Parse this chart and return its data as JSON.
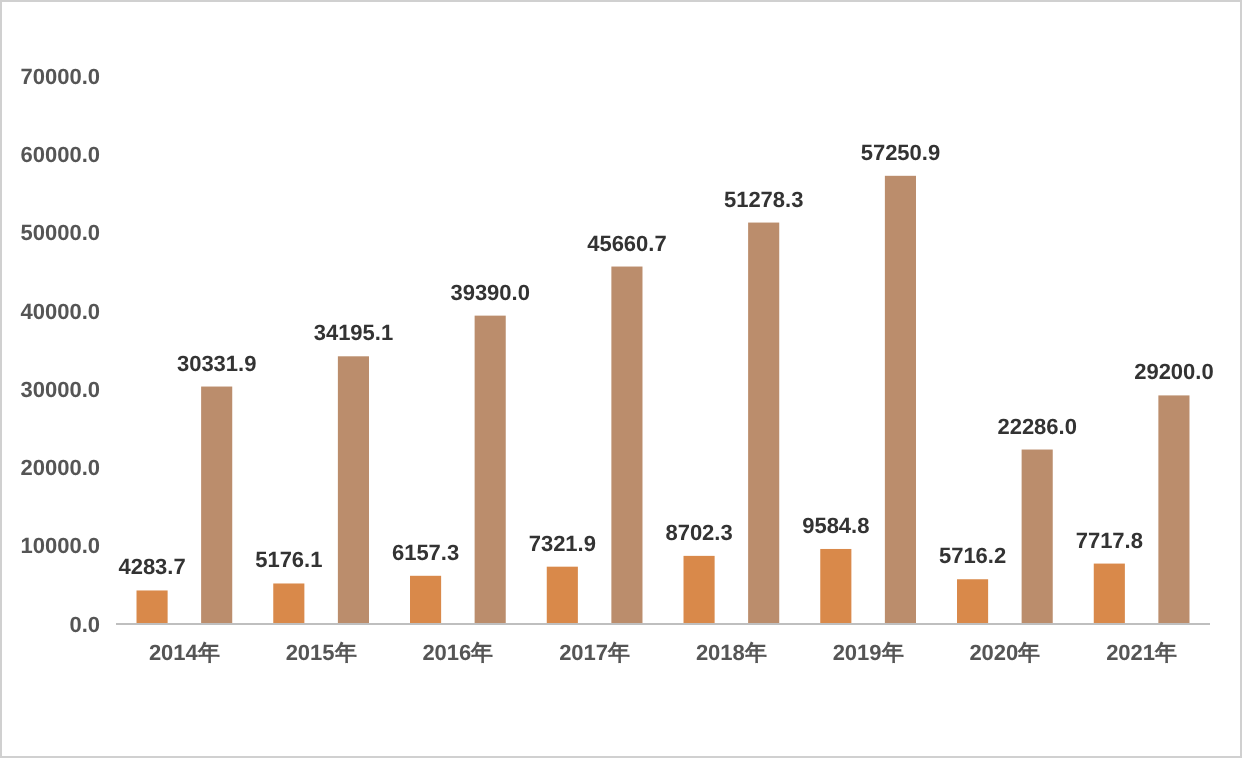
{
  "chart_data": {
    "type": "bar",
    "categories": [
      "2014年",
      "2015年",
      "2016年",
      "2017年",
      "2018年",
      "2019年",
      "2020年",
      "2021年"
    ],
    "series": [
      {
        "color": "#d9894a",
        "values": [
          4283.7,
          5176.1,
          6157.3,
          7321.9,
          8702.3,
          9584.8,
          5716.2,
          7717.8
        ],
        "value_labels": [
          "4283.7",
          "5176.1",
          "6157.3",
          "7321.9",
          "8702.3",
          "9584.8",
          "5716.2",
          "7717.8"
        ]
      },
      {
        "color": "#bb8d6c",
        "values": [
          30331.9,
          34195.1,
          39390,
          45660.7,
          51278.3,
          57250.9,
          22286,
          29200
        ],
        "value_labels": [
          "30331.9",
          "34195.1",
          "39390.0",
          "45660.7",
          "51278.3",
          "57250.9",
          "22286.0",
          "29200.0"
        ]
      }
    ],
    "ylim": [
      0,
      70000
    ],
    "yticks": [
      {
        "value": 0,
        "label": "0.0"
      },
      {
        "value": 10000,
        "label": "10000.0"
      },
      {
        "value": 20000,
        "label": "20000.0"
      },
      {
        "value": 30000,
        "label": "30000.0"
      },
      {
        "value": 40000,
        "label": "40000.0"
      },
      {
        "value": 50000,
        "label": "50000.0"
      },
      {
        "value": 60000,
        "label": "60000.0"
      },
      {
        "value": 70000,
        "label": "70000.0"
      }
    ],
    "grid": false
  }
}
